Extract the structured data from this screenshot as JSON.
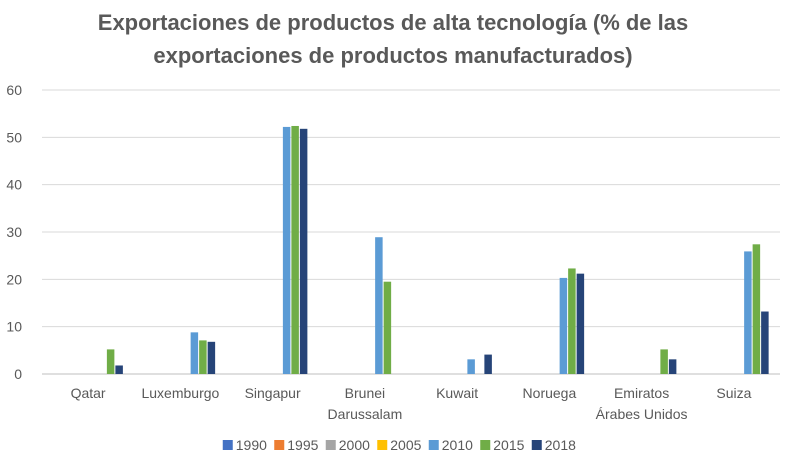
{
  "chart_data": {
    "type": "bar",
    "title_lines": [
      "Exportaciones de productos de alta tecnología (% de las",
      "exportaciones de productos manufacturados)"
    ],
    "xlabel": "",
    "ylabel": "",
    "ylim": [
      0,
      60
    ],
    "yticks": [
      "0",
      "10",
      "20",
      "30",
      "40",
      "50",
      "60"
    ],
    "grid": true,
    "legend_position": "bottom",
    "categories": [
      [
        "Qatar"
      ],
      [
        "Luxemburgo"
      ],
      [
        "Singapur"
      ],
      [
        "Brunei",
        "Darussalam"
      ],
      [
        "Kuwait"
      ],
      [
        "Noruega"
      ],
      [
        "Emiratos",
        "Árabes Unidos"
      ],
      [
        "Suiza"
      ]
    ],
    "series": [
      {
        "name": "1990",
        "color": "#4472C4",
        "values": [
          null,
          null,
          null,
          null,
          null,
          null,
          null,
          null
        ]
      },
      {
        "name": "1995",
        "color": "#ED7D31",
        "values": [
          null,
          null,
          null,
          null,
          null,
          null,
          null,
          null
        ]
      },
      {
        "name": "2000",
        "color": "#A5A5A5",
        "values": [
          null,
          null,
          null,
          null,
          null,
          null,
          null,
          null
        ]
      },
      {
        "name": "2005",
        "color": "#FFC000",
        "values": [
          null,
          null,
          null,
          null,
          null,
          null,
          null,
          null
        ]
      },
      {
        "name": "2010",
        "color": "#5B9BD5",
        "values": [
          null,
          8.8,
          52.2,
          28.9,
          3.1,
          20.3,
          null,
          25.9
        ]
      },
      {
        "name": "2015",
        "color": "#70AD47",
        "values": [
          5.2,
          7.1,
          52.4,
          19.5,
          null,
          22.3,
          5.2,
          27.4
        ]
      },
      {
        "name": "2018",
        "color": "#264478",
        "values": [
          1.8,
          6.8,
          51.8,
          null,
          4.1,
          21.2,
          3.1,
          13.2
        ]
      }
    ]
  }
}
